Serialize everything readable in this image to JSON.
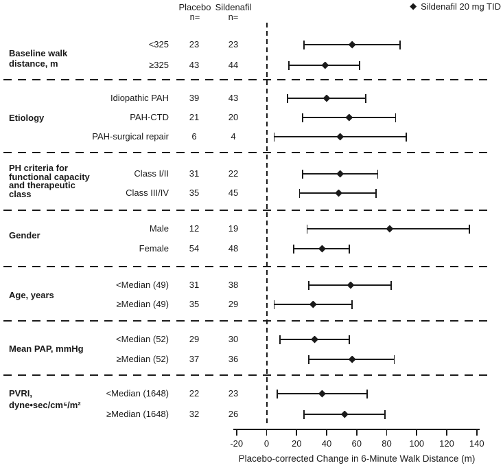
{
  "legend": {
    "marker": "diamond",
    "label": "Sildenafil 20 mg TID"
  },
  "columns": {
    "placebo": "Placebo",
    "sildenafil": "Sildenafil",
    "n_label": "n="
  },
  "axis": {
    "title": "Placebo-corrected Change in 6-Minute Walk Distance (m)",
    "min": -20,
    "max": 140,
    "step": 20,
    "ticks": [
      -20,
      0,
      20,
      40,
      60,
      80,
      100,
      120,
      140
    ]
  },
  "chart_data": {
    "type": "forest",
    "xlabel": "Placebo-corrected Change in 6-Minute Walk Distance (m)",
    "xlim": [
      -20,
      140
    ],
    "zero_line": 0,
    "legend": "Sildenafil 20 mg TID",
    "legend_position": "top-right",
    "columns": [
      "Placebo n=",
      "Sildenafil n="
    ],
    "sections": [
      {
        "group": "Baseline walk distance, m",
        "label_lines": [
          "Baseline walk",
          "distance, m"
        ],
        "rows": [
          {
            "label": "<325",
            "placebo_n": 23,
            "sildenafil_n": 23,
            "estimate": 57,
            "ci_low": 25,
            "ci_high": 89
          },
          {
            "label": "≥325",
            "placebo_n": 43,
            "sildenafil_n": 44,
            "estimate": 39,
            "ci_low": 15,
            "ci_high": 62
          }
        ]
      },
      {
        "group": "Etiology",
        "label_lines": [
          "Etiology"
        ],
        "rows": [
          {
            "label": "Idiopathic PAH",
            "placebo_n": 39,
            "sildenafil_n": 43,
            "estimate": 40,
            "ci_low": 14,
            "ci_high": 66
          },
          {
            "label": "PAH-CTD",
            "placebo_n": 21,
            "sildenafil_n": 20,
            "estimate": 55,
            "ci_low": 24,
            "ci_high": 86
          },
          {
            "label": "PAH-surgical repair",
            "placebo_n": 6,
            "sildenafil_n": 4,
            "estimate": 49,
            "ci_low": 5,
            "ci_high": 93
          }
        ]
      },
      {
        "group": "PH criteria for functional capacity and therapeutic class",
        "label_lines": [
          "PH criteria for",
          "functional capacity",
          "and therapeutic",
          "class"
        ],
        "rows": [
          {
            "label": "Class I/II",
            "placebo_n": 31,
            "sildenafil_n": 22,
            "estimate": 49,
            "ci_low": 24,
            "ci_high": 74
          },
          {
            "label": "Class III/IV",
            "placebo_n": 35,
            "sildenafil_n": 45,
            "estimate": 48,
            "ci_low": 22,
            "ci_high": 73
          }
        ]
      },
      {
        "group": "Gender",
        "label_lines": [
          "Gender"
        ],
        "rows": [
          {
            "label": "Male",
            "placebo_n": 12,
            "sildenafil_n": 19,
            "estimate": 82,
            "ci_low": 27,
            "ci_high": 135
          },
          {
            "label": "Female",
            "placebo_n": 54,
            "sildenafil_n": 48,
            "estimate": 37,
            "ci_low": 18,
            "ci_high": 55
          }
        ]
      },
      {
        "group": "Age, years",
        "label_lines": [
          "Age, years"
        ],
        "rows": [
          {
            "label": "<Median (49)",
            "placebo_n": 31,
            "sildenafil_n": 38,
            "estimate": 56,
            "ci_low": 28,
            "ci_high": 83
          },
          {
            "label": "≥Median (49)",
            "placebo_n": 35,
            "sildenafil_n": 29,
            "estimate": 31,
            "ci_low": 5,
            "ci_high": 57
          }
        ]
      },
      {
        "group": "Mean PAP, mmHg",
        "label_lines": [
          "Mean PAP, mmHg"
        ],
        "rows": [
          {
            "label": "<Median (52)",
            "placebo_n": 29,
            "sildenafil_n": 30,
            "estimate": 32,
            "ci_low": 9,
            "ci_high": 55
          },
          {
            "label": "≥Median (52)",
            "placebo_n": 37,
            "sildenafil_n": 36,
            "estimate": 57,
            "ci_low": 28,
            "ci_high": 85
          }
        ]
      },
      {
        "group": "PVRI, dyne•sec/cm⁵/m²",
        "label_lines": [
          "PVRI,",
          "dyne•sec/cm⁵/m²"
        ],
        "rows": [
          {
            "label": "<Median (1648)",
            "placebo_n": 22,
            "sildenafil_n": 23,
            "estimate": 37,
            "ci_low": 7,
            "ci_high": 67
          },
          {
            "label": "≥Median (1648)",
            "placebo_n": 32,
            "sildenafil_n": 26,
            "estimate": 52,
            "ci_low": 25,
            "ci_high": 79
          }
        ]
      }
    ]
  }
}
